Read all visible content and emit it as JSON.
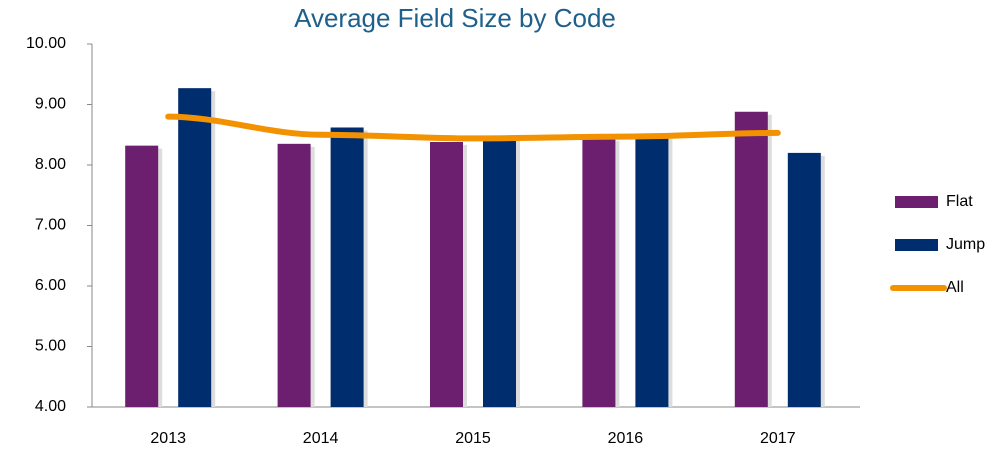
{
  "chart_data": {
    "type": "bar_line",
    "title": "Average Field Size by Code",
    "categories": [
      "2013",
      "2014",
      "2015",
      "2016",
      "2017"
    ],
    "series": [
      {
        "name": "Flat",
        "type": "bar",
        "color": "#6b1f6e",
        "values": [
          8.32,
          8.35,
          8.38,
          8.45,
          8.88
        ]
      },
      {
        "name": "Jump",
        "type": "bar",
        "color": "#002d6e",
        "values": [
          9.27,
          8.62,
          8.45,
          8.48,
          8.2
        ]
      },
      {
        "name": "All",
        "type": "line",
        "color": "#f39200",
        "values": [
          8.8,
          8.5,
          8.44,
          8.47,
          8.53
        ]
      }
    ],
    "ylim": [
      4,
      10
    ],
    "yticks": [
      {
        "value": 4,
        "label": "4.00"
      },
      {
        "value": 5,
        "label": "5.00"
      },
      {
        "value": 6,
        "label": "6.00"
      },
      {
        "value": 7,
        "label": "7.00"
      },
      {
        "value": 8,
        "label": "8.00"
      },
      {
        "value": 9,
        "label": "9.00"
      },
      {
        "value": 10,
        "label": "10.00"
      }
    ],
    "legend": "right"
  }
}
